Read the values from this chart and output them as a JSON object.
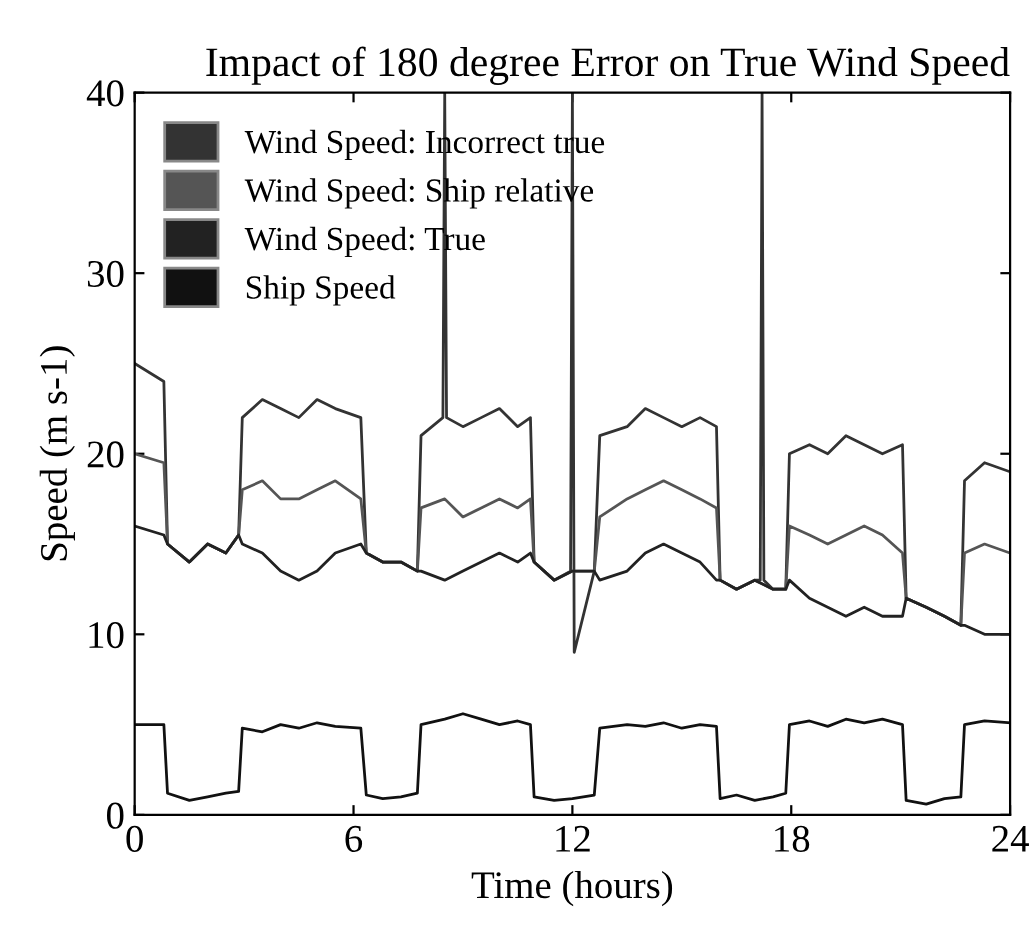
{
  "chart_data": {
    "type": "line",
    "title": "Impact of 180 degree Error on True Wind Speed",
    "xlabel": "Time (hours)",
    "ylabel": "Speed (m s-1)",
    "x": [
      0,
      0.8,
      0.9,
      1.5,
      2,
      2.5,
      2.85,
      2.95,
      3.5,
      4,
      4.5,
      5,
      5.5,
      6.2,
      6.35,
      6.8,
      7.3,
      7.75,
      7.85,
      8.5,
      9,
      9.5,
      10,
      10.5,
      10.85,
      10.95,
      11.5,
      12,
      12.6,
      12.75,
      13.5,
      14,
      14.5,
      15,
      15.5,
      15.95,
      16.05,
      16.5,
      17,
      17.5,
      17.85,
      17.95,
      18.5,
      19,
      19.5,
      20,
      20.5,
      21.05,
      21.15,
      21.7,
      22.2,
      22.65,
      22.75,
      23.3,
      24
    ],
    "series": [
      {
        "name": "Wind Speed: Incorrect true",
        "color": "#333333",
        "x": [
          0,
          0.8,
          0.9,
          1.5,
          2,
          2.5,
          2.85,
          2.95,
          3.5,
          4,
          4.5,
          5,
          5.5,
          6.2,
          6.35,
          6.8,
          7.3,
          7.75,
          7.85,
          8.45,
          8.5,
          8.55,
          9,
          9.5,
          10,
          10.5,
          10.85,
          10.95,
          11.5,
          11.95,
          12,
          12.05,
          12.6,
          12.75,
          13.5,
          14,
          14.5,
          15,
          15.5,
          15.95,
          16.05,
          16.5,
          17,
          17.15,
          17.2,
          17.25,
          17.5,
          17.85,
          17.95,
          18.5,
          19,
          19.5,
          20,
          20.5,
          21.05,
          21.15,
          21.7,
          22.2,
          22.65,
          22.75,
          23.3,
          24
        ],
        "values": [
          25,
          24,
          15,
          14,
          15,
          14.5,
          15.5,
          22,
          23,
          22.5,
          22,
          23,
          22.5,
          22,
          14.5,
          14,
          14,
          13.5,
          21,
          22,
          40,
          22,
          21.5,
          22,
          22.5,
          21.5,
          22,
          14,
          13,
          13.5,
          40,
          9,
          13.5,
          21,
          21.5,
          22.5,
          22,
          21.5,
          22,
          21.5,
          13,
          12.5,
          13,
          13,
          40,
          13,
          12.5,
          12.5,
          20,
          20.5,
          20,
          21,
          20.5,
          20,
          20.5,
          12,
          11.5,
          11,
          10.5,
          18.5,
          19.5,
          19
        ]
      },
      {
        "name": "Wind Speed: Ship relative",
        "color": "#555555",
        "values": [
          20,
          19.5,
          15,
          14,
          15,
          14.5,
          15.5,
          18,
          18.5,
          17.5,
          17.5,
          18,
          18.5,
          17.5,
          14.5,
          14,
          14,
          13.5,
          17,
          17.5,
          16.5,
          17,
          17.5,
          17,
          17.5,
          14,
          13,
          13.5,
          13.5,
          16.5,
          17.5,
          18,
          18.5,
          18,
          17.5,
          17,
          13,
          12.5,
          13,
          12.5,
          12.5,
          16,
          15.5,
          15,
          15.5,
          16,
          15.5,
          14.5,
          12,
          11.5,
          11,
          10.5,
          14.5,
          15,
          14.5
        ]
      },
      {
        "name": "Wind Speed: True",
        "color": "#222222",
        "values": [
          16,
          15.5,
          15,
          14,
          15,
          14.5,
          15.5,
          15,
          14.5,
          13.5,
          13,
          13.5,
          14.5,
          15,
          14.5,
          14,
          14,
          13.5,
          13.5,
          13,
          13.5,
          14,
          14.5,
          14,
          14.5,
          14,
          13,
          13.5,
          13.5,
          13,
          13.5,
          14.5,
          15,
          14.5,
          14,
          13,
          13,
          12.5,
          13,
          12.5,
          12.5,
          13,
          12,
          11.5,
          11,
          11.5,
          11,
          11,
          12,
          11.5,
          11,
          10.5,
          10.5,
          10,
          10
        ]
      },
      {
        "name": "Ship Speed",
        "color": "#111111",
        "values": [
          5,
          5,
          1.2,
          0.8,
          1,
          1.2,
          1.3,
          4.8,
          4.6,
          5,
          4.8,
          5.1,
          4.9,
          4.8,
          1.1,
          0.9,
          1,
          1.2,
          5,
          5.3,
          5.6,
          5.3,
          5,
          5.2,
          5,
          1,
          0.8,
          0.9,
          1.1,
          4.8,
          5,
          4.9,
          5.1,
          4.8,
          5,
          4.9,
          0.9,
          1.1,
          0.8,
          1,
          1.2,
          5,
          5.2,
          4.9,
          5.3,
          5.1,
          5.3,
          5,
          0.8,
          0.6,
          0.9,
          1,
          5,
          5.2,
          5.1
        ]
      }
    ],
    "xlim": [
      0,
      24
    ],
    "xticks": [
      0,
      6,
      12,
      18,
      24
    ],
    "ylim": [
      0,
      40
    ],
    "yticks": [
      0,
      10,
      20,
      30,
      40
    ],
    "grid": false,
    "legend": "top left",
    "line_style": "solid",
    "marker": "none"
  }
}
